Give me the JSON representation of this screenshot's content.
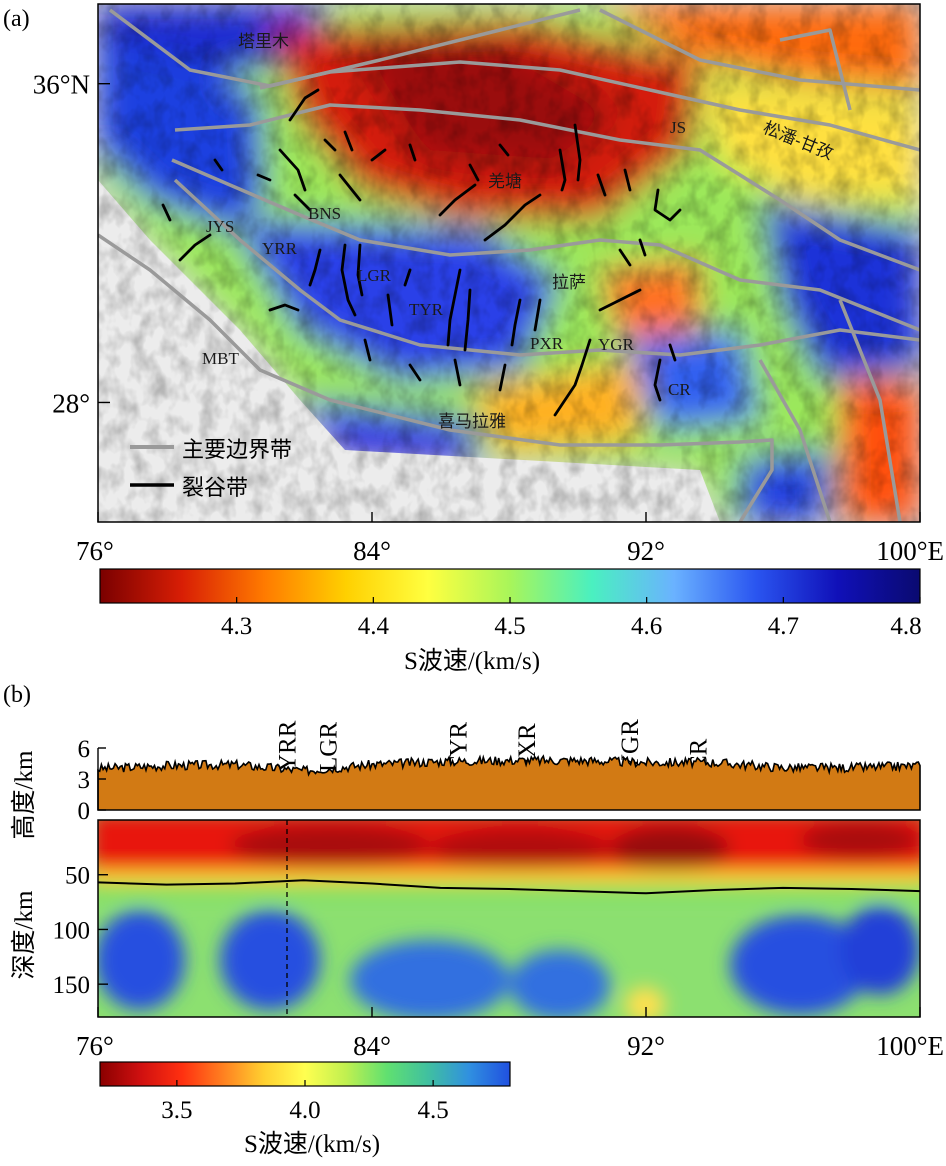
{
  "chart_data": [
    {
      "type": "heatmap",
      "panel_label": "(a)",
      "x_ticks": [
        "76°",
        "84°",
        "92°",
        "100°E"
      ],
      "x_tick_values": [
        76,
        84,
        92,
        100
      ],
      "y_ticks": [
        "36°N",
        "28°"
      ],
      "y_tick_values": [
        36,
        28
      ],
      "xlim": [
        76,
        100
      ],
      "ylim": [
        25,
        38
      ],
      "colorbar": {
        "ticks": [
          "4.3",
          "4.4",
          "4.5",
          "4.6",
          "4.7",
          "4.8"
        ],
        "tick_values": [
          4.3,
          4.4,
          4.5,
          4.6,
          4.7,
          4.8
        ],
        "range": [
          4.2,
          4.8
        ],
        "label": "S波速/(km/s)",
        "colors": [
          "#7a0000",
          "#d81e05",
          "#ff7a00",
          "#ffd000",
          "#ffff40",
          "#a8f55a",
          "#4af0c0",
          "#6ab2ff",
          "#2a55f0",
          "#1010b8",
          "#0a0a70"
        ]
      },
      "map_labels": [
        "塔里木",
        "JS",
        "松潘-甘孜",
        "羌塘",
        "BNS",
        "JYS",
        "YRR",
        "LGR",
        "拉萨",
        "TYR",
        "PXR",
        "YGR",
        "MBT",
        "CR",
        "喜马拉雅"
      ],
      "legend": [
        {
          "label": "主要边界带",
          "color": "#9a9a9a"
        },
        {
          "label": "裂谷带",
          "color": "#000000"
        }
      ]
    },
    {
      "type": "heatmap",
      "panel_label": "(b)",
      "x_ticks": [
        "76°",
        "84°",
        "92°",
        "100°E"
      ],
      "x_tick_values": [
        76,
        84,
        92,
        100
      ],
      "topo_ticks": [
        "6",
        "3",
        "0"
      ],
      "topo_tick_values": [
        6,
        3,
        0
      ],
      "topo_ylabel": "高度/km",
      "depth_ticks": [
        "50",
        "100",
        "150"
      ],
      "depth_tick_values": [
        50,
        100,
        150
      ],
      "depth_ylabel": "深度/km",
      "depth_range": [
        0,
        180
      ],
      "rift_labels": [
        "YRR",
        "LGR",
        "TYR",
        "PXR",
        "YGR",
        "CR"
      ],
      "rift_longitudes": [
        81.5,
        82.7,
        86.5,
        88.5,
        91.5,
        93.5
      ],
      "moho": {
        "lon": [
          76,
          78,
          80,
          82,
          84,
          86,
          88,
          90,
          92,
          94,
          96,
          98,
          100
        ],
        "depth": [
          57,
          59,
          58,
          55,
          58,
          62,
          63,
          65,
          67,
          64,
          62,
          63,
          65
        ]
      },
      "elevation_km": {
        "lon": [
          76,
          78,
          80,
          82,
          84,
          86,
          88,
          90,
          92,
          94,
          96,
          98,
          100
        ],
        "value": [
          4.0,
          4.3,
          4.4,
          3.8,
          4.4,
          4.7,
          4.8,
          4.8,
          4.6,
          4.6,
          4.1,
          4.1,
          4.3
        ]
      },
      "colorbar": {
        "ticks": [
          "3.5",
          "4.0",
          "4.5"
        ],
        "tick_values": [
          3.5,
          4.0,
          4.5
        ],
        "range": [
          3.2,
          4.8
        ],
        "label": "S波速/(km/s)",
        "colors": [
          "#8a0000",
          "#d01010",
          "#ff3010",
          "#ff8020",
          "#ffd030",
          "#ffff50",
          "#c0f050",
          "#60e070",
          "#40c0a0",
          "#3090e0",
          "#2050e0"
        ]
      }
    }
  ]
}
